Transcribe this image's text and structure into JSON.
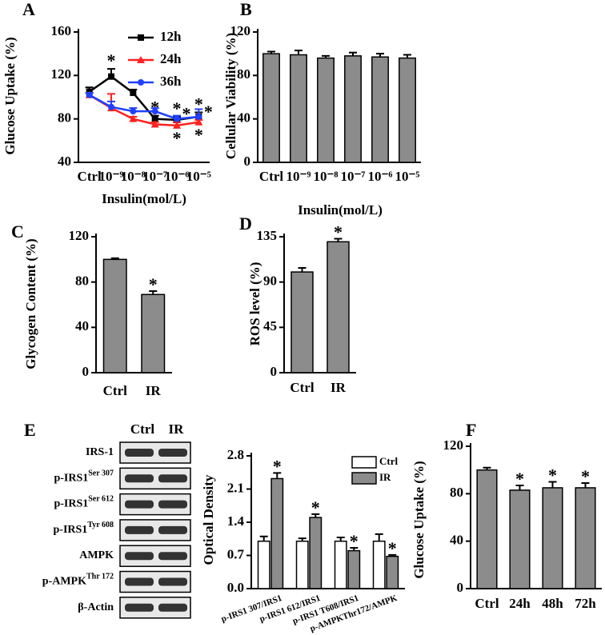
{
  "chart_data": [
    {
      "type": "line",
      "label": "A",
      "ylabel": "Glucose Uptake (%)",
      "xlabel": "Insulin(mol/L)",
      "categories": [
        "Ctrl",
        "10⁻⁹",
        "10⁻⁸",
        "10⁻⁷",
        "10⁻⁶",
        "10⁻⁵"
      ],
      "ylim": [
        40,
        160
      ],
      "yticks": [
        40,
        80,
        120,
        160
      ],
      "legend": "upper right",
      "series": [
        {
          "name": "12h",
          "color": "#000000",
          "marker": "square",
          "values": [
            105,
            119,
            104,
            80,
            79,
            82
          ],
          "errors": [
            4,
            7,
            3,
            3,
            3,
            4
          ],
          "markers": [
            null,
            "*",
            null,
            "*",
            "*",
            "*"
          ]
        },
        {
          "name": "24h",
          "color": "#ff2020",
          "marker": "triangle",
          "values": [
            102,
            90,
            80,
            75,
            74,
            77
          ],
          "errors": [
            2,
            13,
            2,
            2,
            3,
            2
          ],
          "markers": [
            null,
            null,
            null,
            null,
            "*",
            "*"
          ]
        },
        {
          "name": "36h",
          "color": "#2040ff",
          "marker": "circle",
          "values": [
            102,
            91,
            87,
            87,
            80,
            82
          ],
          "errors": [
            2,
            5,
            3,
            3,
            3,
            7
          ],
          "markers": [
            null,
            null,
            null,
            null,
            "*",
            "*"
          ]
        }
      ]
    },
    {
      "type": "bar",
      "label": "B",
      "ylabel": "Cellular Viability (%)",
      "xlabel": "Insulin(mol/L)",
      "categories": [
        "Ctrl",
        "10⁻⁹",
        "10⁻⁸",
        "10⁻⁷",
        "10⁻⁶",
        "10⁻⁵"
      ],
      "values": [
        100,
        99,
        96,
        98,
        97,
        96
      ],
      "errors": [
        2,
        4,
        2,
        3,
        3,
        3
      ],
      "color": "#8c8c8c",
      "ylim": [
        0,
        120
      ],
      "yticks": [
        0,
        40,
        80,
        120
      ]
    },
    {
      "type": "bar",
      "label": "C",
      "ylabel": "Glycogen Content (%)",
      "categories": [
        "Ctrl",
        "IR"
      ],
      "values": [
        100,
        69
      ],
      "errors": [
        1,
        3
      ],
      "markers": [
        null,
        "*"
      ],
      "color": "#8c8c8c",
      "ylim": [
        0,
        120
      ],
      "yticks": [
        0,
        40,
        80,
        120
      ]
    },
    {
      "type": "bar",
      "label": "D",
      "ylabel": "ROS level (%)",
      "categories": [
        "Ctrl",
        "IR"
      ],
      "values": [
        100,
        130
      ],
      "errors": [
        4,
        3
      ],
      "markers": [
        null,
        "*"
      ],
      "color": "#8c8c8c",
      "ylim": [
        0,
        135
      ],
      "yticks": [
        0,
        45,
        90,
        135
      ]
    },
    {
      "type": "grouped_bar",
      "label": "E",
      "ylabel": "Optical Density",
      "legend": "upper right",
      "categories": [
        "p-IRS1 307/IRS1",
        "p-IRS1 612/IRS1",
        "p-IRS1 T608/IRS1",
        "p-AMPKThr172/AMPK"
      ],
      "ylim": [
        0,
        2.8
      ],
      "yticks": [
        {
          "value": 0,
          "label": "0.0"
        },
        0.7,
        1.4,
        2.1,
        2.8
      ],
      "series": [
        {
          "name": "Ctrl",
          "color": "#ffffff",
          "values": [
            1,
            1,
            1,
            1
          ],
          "errors": [
            0.1,
            0.06,
            0.08,
            0.15
          ]
        },
        {
          "name": "IR",
          "color": "#8c8c8c",
          "values": [
            2.32,
            1.5,
            0.8,
            0.68
          ],
          "errors": [
            0.12,
            0.07,
            0.06,
            0.03
          ],
          "markers": [
            "*",
            "*",
            "*",
            "*"
          ]
        }
      ]
    },
    {
      "type": "bar",
      "label": "F",
      "ylabel": "Glucose Uptake (%)",
      "categories": [
        "Ctrl",
        "24h",
        "48h",
        "72h"
      ],
      "values": [
        100,
        83,
        85,
        85
      ],
      "errors": [
        2,
        4,
        5,
        4
      ],
      "markers": [
        null,
        "*",
        "*",
        "*"
      ],
      "color": "#8c8c8c",
      "ylim": [
        0,
        120
      ],
      "yticks": [
        0,
        40,
        80,
        120
      ]
    }
  ],
  "blot": {
    "columns": [
      "Ctrl",
      "IR"
    ],
    "rows": [
      {
        "label": "IRS-1"
      },
      {
        "label": "p-IRS1",
        "sup": "Ser 307"
      },
      {
        "label": "p-IRS1",
        "sup": "Ser 612"
      },
      {
        "label": "p-IRS1",
        "sup": "Tyr 608"
      },
      {
        "label": "AMPK"
      },
      {
        "label": "p-AMPK",
        "sup": "Thr 172"
      },
      {
        "label": "β-Actin"
      }
    ]
  }
}
